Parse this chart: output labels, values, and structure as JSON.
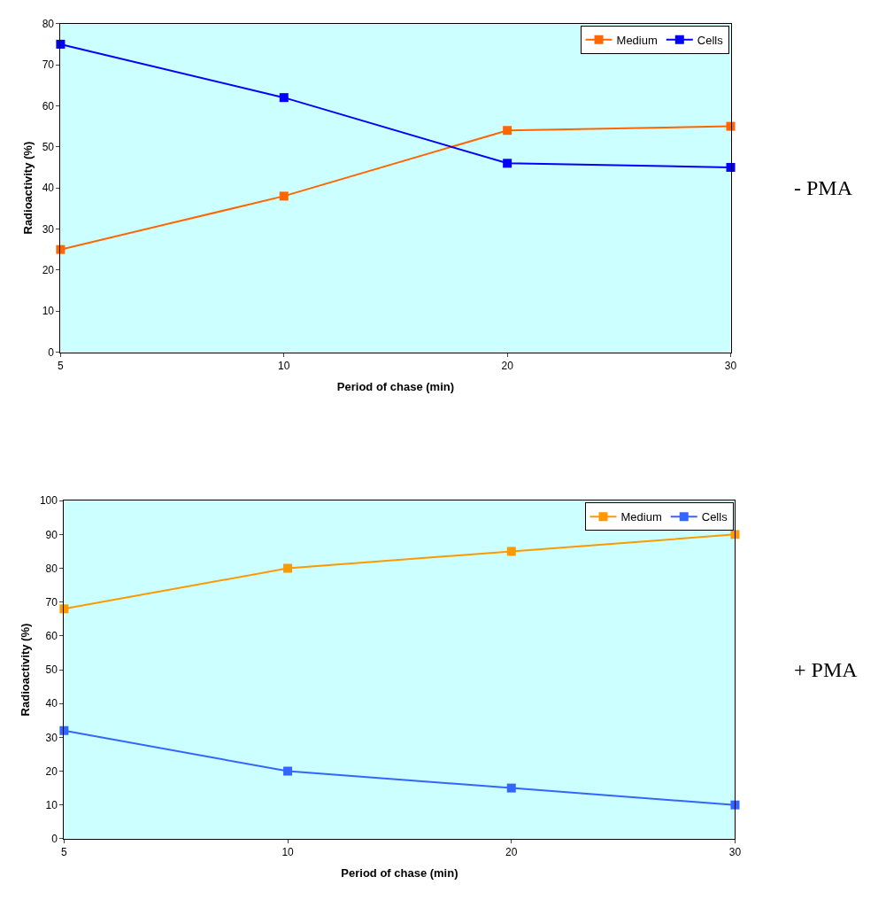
{
  "chart_data": [
    {
      "type": "line",
      "categories": [
        "5",
        "10",
        "20",
        "30"
      ],
      "xlabel": "Period of chase (min)",
      "ylabel": "Radioactivity (%)",
      "ylim": [
        0,
        80
      ],
      "yticks": [
        0,
        10,
        20,
        30,
        40,
        50,
        60,
        70,
        80
      ],
      "grid": false,
      "legend": "top right",
      "marker": "square",
      "line_style": "solid",
      "annotations": [
        "- PMA"
      ],
      "series": [
        {
          "name": "Medium",
          "color": "#ff6600",
          "values": [
            25,
            38,
            54,
            55
          ]
        },
        {
          "name": "Cells",
          "color": "#0000ff",
          "values": [
            75,
            62,
            46,
            45
          ]
        }
      ]
    },
    {
      "type": "line",
      "categories": [
        "5",
        "10",
        "20",
        "30"
      ],
      "xlabel": "Period of chase (min)",
      "ylabel": "Radioactivity (%)",
      "ylim": [
        0,
        100
      ],
      "yticks": [
        0,
        10,
        20,
        30,
        40,
        50,
        60,
        70,
        80,
        90,
        100
      ],
      "grid": false,
      "legend": "top right",
      "marker": "square",
      "line_style": "solid",
      "annotations": [
        "+ PMA"
      ],
      "series": [
        {
          "name": "Medium",
          "color": "#ff9900",
          "values": [
            68,
            80,
            85,
            90
          ]
        },
        {
          "name": "Cells",
          "color": "#3366ff",
          "values": [
            32,
            20,
            15,
            10
          ]
        }
      ]
    }
  ]
}
